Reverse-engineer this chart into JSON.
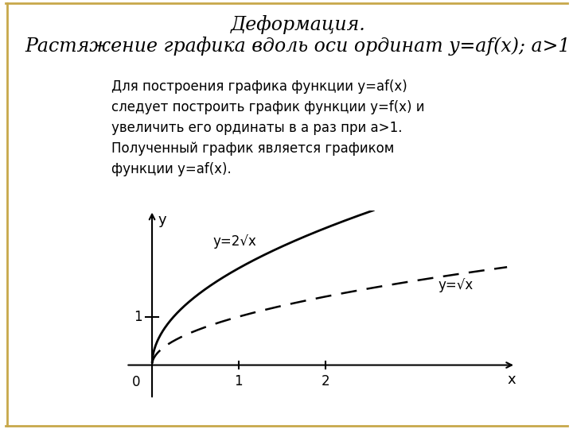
{
  "title_line1": "Деформация.",
  "title_line2": "Растяжение графика вдоль оси ординат y=af(x); a>1",
  "desc_line1": "Для построения графика функции y=af(x)",
  "desc_line2": "следует построить график функции y=f(x) и",
  "desc_line3": "увеличить его ординаты в a раз при a>1.",
  "desc_line4": "Полученный график является графиком",
  "desc_line5": "функции y=af(x).",
  "label_solid": "y=2√x",
  "label_dashed": "y=√x",
  "x_label": "x",
  "y_label": "y",
  "x_tick_1": "1",
  "x_tick_2": "2",
  "y_tick_1": "1",
  "origin_label": "0",
  "xmin": -0.3,
  "xmax": 4.2,
  "ymin": -0.7,
  "ymax": 3.2,
  "background_color": "#ffffff",
  "border_color": "#c8a84b",
  "text_color": "#000000",
  "title_fontsize": 17,
  "desc_fontsize": 12,
  "axis_label_fontsize": 13,
  "tick_label_fontsize": 12,
  "curve_label_fontsize": 12,
  "line_color": "#000000",
  "solid_linewidth": 2.0,
  "dashed_linewidth": 1.8
}
